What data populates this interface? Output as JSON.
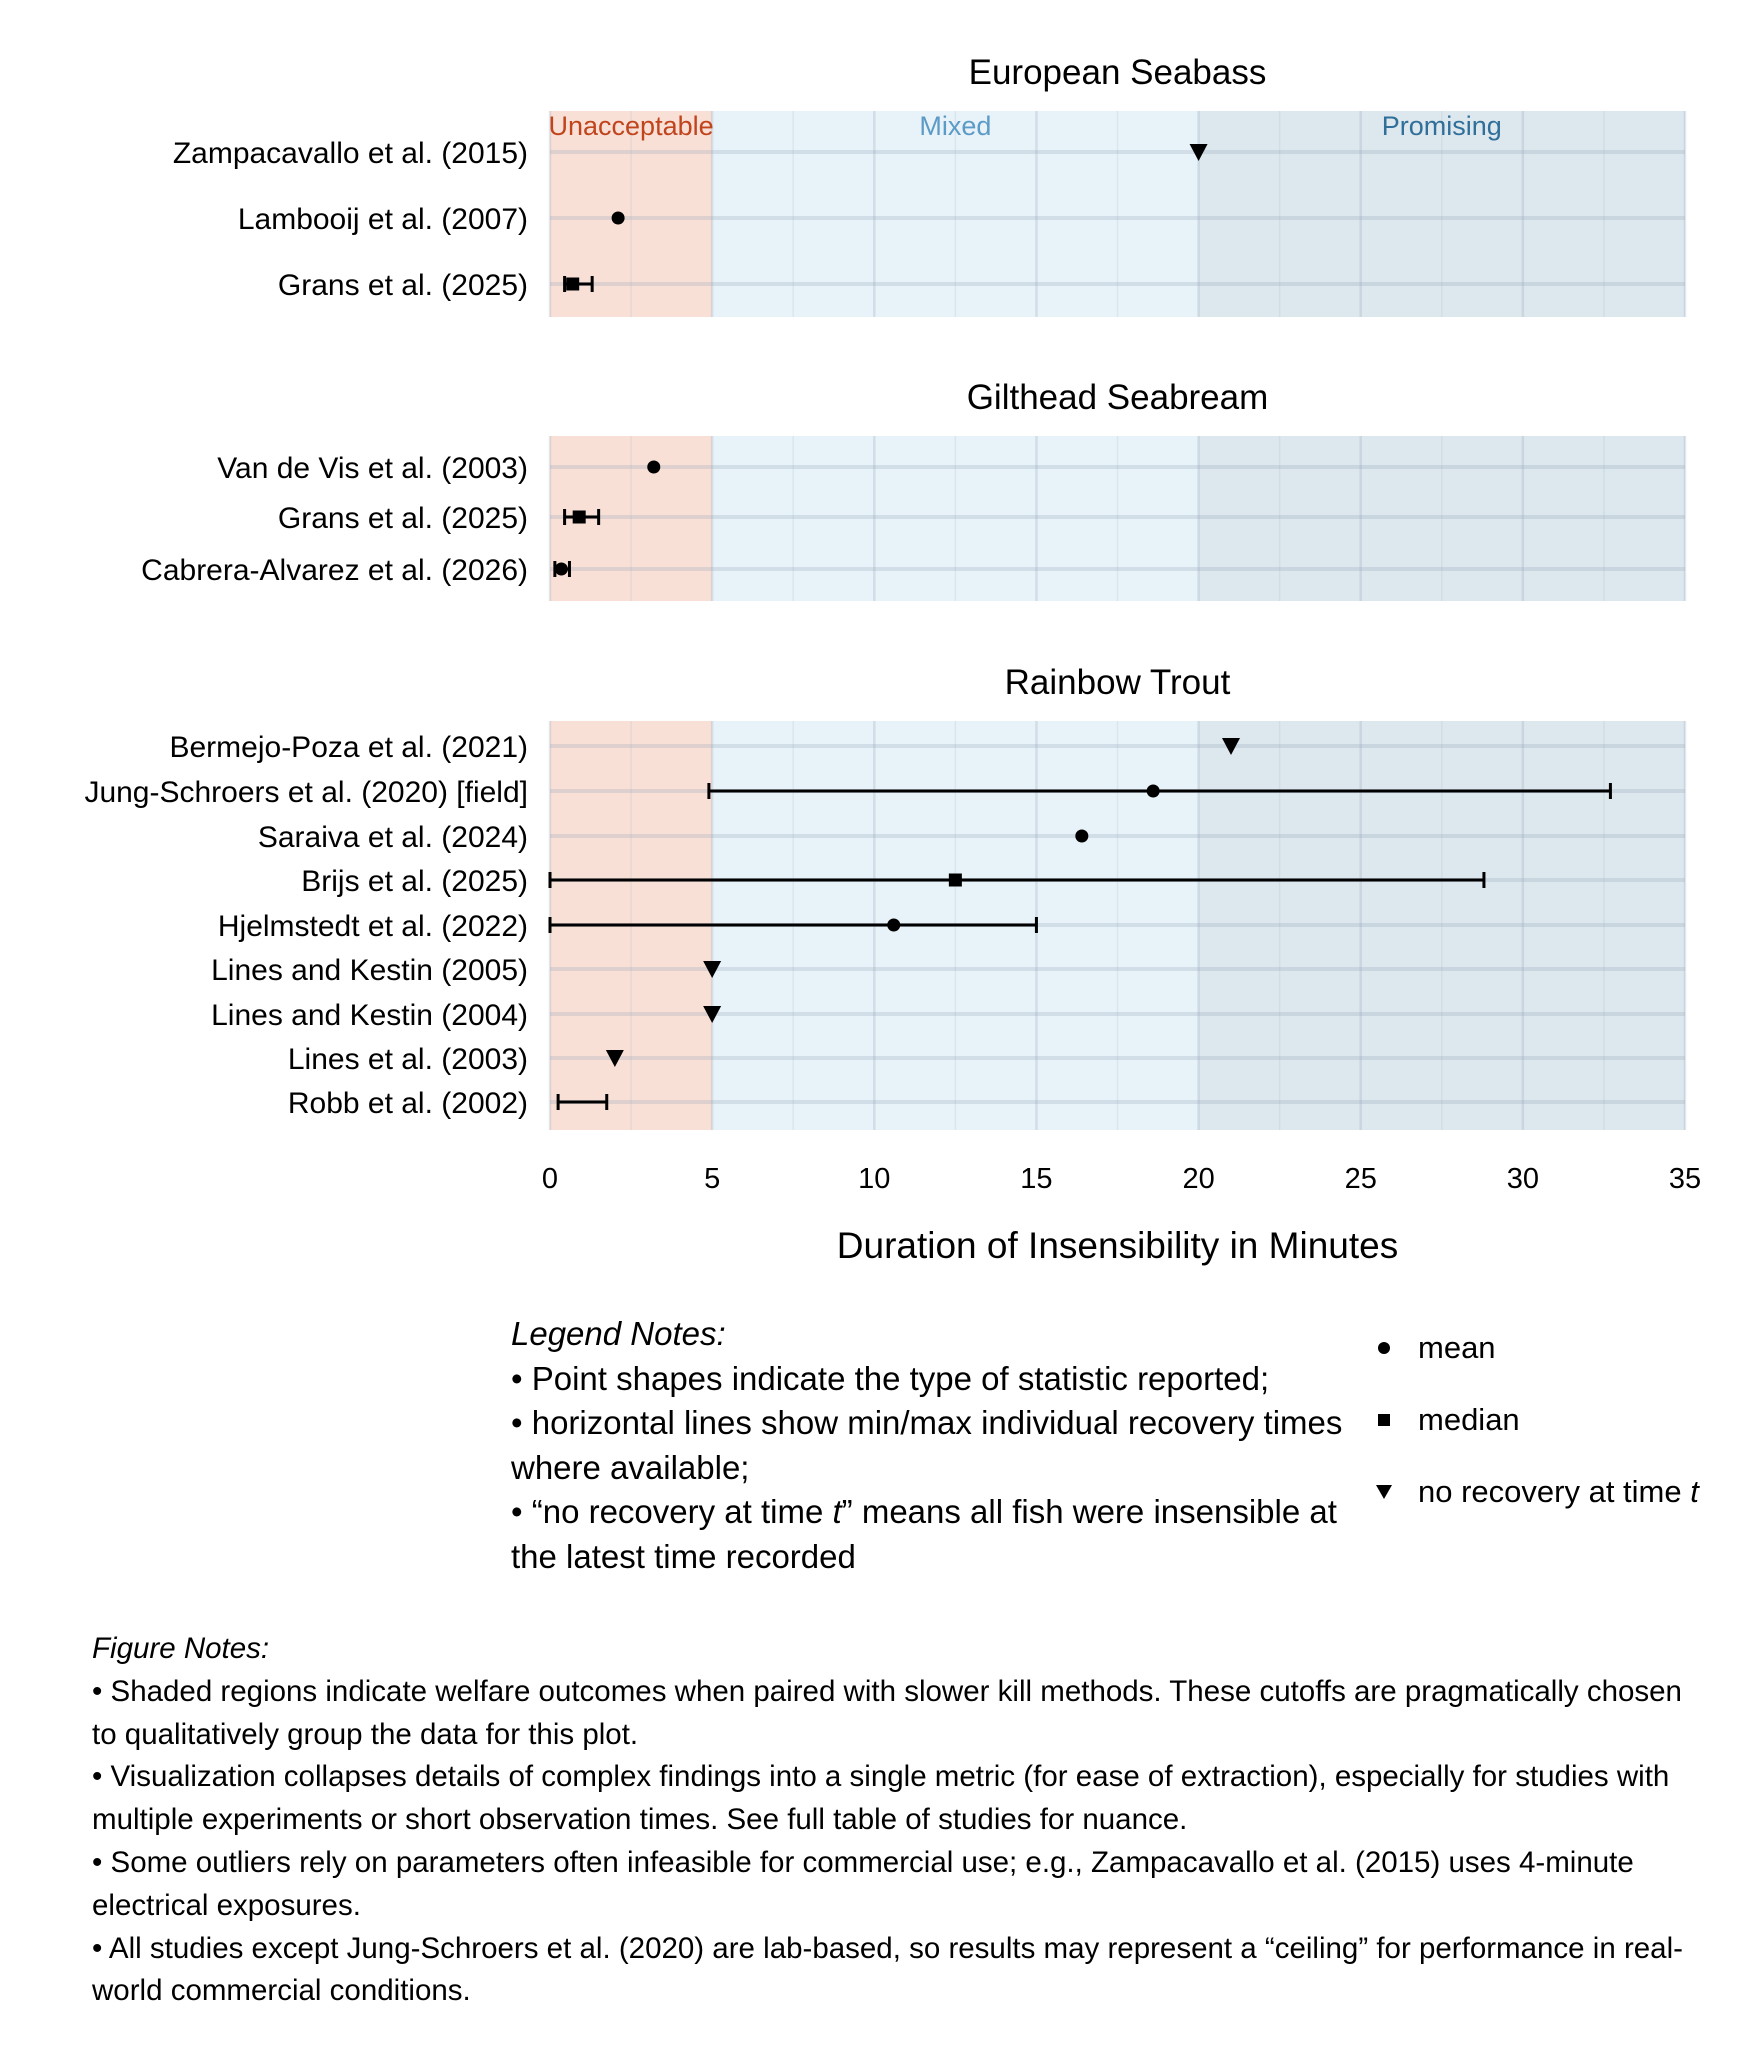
{
  "chart_data": {
    "type": "scatter",
    "xlabel": "Duration of Insensibility in Minutes",
    "xlim": [
      0,
      35
    ],
    "xticks": [
      0,
      5,
      10,
      15,
      20,
      25,
      30,
      35
    ],
    "grid": true,
    "regions": [
      {
        "label": "Unacceptable",
        "from": 0,
        "to": 5,
        "fill": "#f9e0d7",
        "text_color": "#c0441c"
      },
      {
        "label": "Mixed",
        "from": 5,
        "to": 20,
        "fill": "#e8f2f9",
        "text_color": "#5b9bc6"
      },
      {
        "label": "Promising",
        "from": 20,
        "to": 35,
        "fill": "#dde7ee",
        "text_color": "#2f6f99"
      }
    ],
    "panels": [
      {
        "title": "European Seabass",
        "studies": [
          {
            "label": "Zampacavallo et al. (2015)",
            "value": 20,
            "stat": "no recovery at time t",
            "min": null,
            "max": null
          },
          {
            "label": "Lambooij et al. (2007)",
            "value": 2.1,
            "stat": "mean",
            "min": null,
            "max": null
          },
          {
            "label": "Grans et al. (2025)",
            "value": 0.7,
            "stat": "median",
            "min": 0.45,
            "max": 1.3
          }
        ]
      },
      {
        "title": "Gilthead Seabream",
        "studies": [
          {
            "label": "Van de Vis et al. (2003)",
            "value": 3.2,
            "stat": "mean",
            "min": null,
            "max": null
          },
          {
            "label": "Grans et al. (2025)",
            "value": 0.9,
            "stat": "median",
            "min": 0.45,
            "max": 1.5
          },
          {
            "label": "Cabrera-Alvarez et al. (2026)",
            "value": 0.35,
            "stat": "mean",
            "min": 0.15,
            "max": 0.6
          }
        ]
      },
      {
        "title": "Rainbow Trout",
        "studies": [
          {
            "label": "Bermejo-Poza et al. (2021)",
            "value": 21,
            "stat": "no recovery at time t",
            "min": null,
            "max": null
          },
          {
            "label": "Jung-Schroers et al. (2020) [field]",
            "value": 18.6,
            "stat": "mean",
            "min": 4.9,
            "max": 32.7
          },
          {
            "label": "Saraiva et al. (2024)",
            "value": 16.4,
            "stat": "mean",
            "min": null,
            "max": null
          },
          {
            "label": "Brijs et al. (2025)",
            "value": 12.5,
            "stat": "median",
            "min": 0,
            "max": 28.8
          },
          {
            "label": "Hjelmstedt et al. (2022)",
            "value": 10.6,
            "stat": "mean",
            "min": 0,
            "max": 15
          },
          {
            "label": "Lines and Kestin (2005)",
            "value": 5,
            "stat": "no recovery at time t",
            "min": null,
            "max": null
          },
          {
            "label": "Lines and Kestin (2004)",
            "value": 5,
            "stat": "no recovery at time t",
            "min": null,
            "max": null
          },
          {
            "label": "Lines et al. (2003)",
            "value": 2,
            "stat": "no recovery at time t",
            "min": null,
            "max": null
          },
          {
            "label": "Robb et al. (2002)",
            "value": null,
            "stat": null,
            "min": 0.25,
            "max": 1.75
          }
        ]
      }
    ]
  },
  "legend_notes": {
    "heading": "Legend Notes:",
    "lines": [
      "• Point shapes indicate the type of statistic reported;",
      "• horizontal lines show min/max individual recovery times where available;",
      "• “no recovery at time t” means all fish were insensible at the latest time recorded"
    ]
  },
  "legend": {
    "items": [
      {
        "label": "mean",
        "shape": "circle"
      },
      {
        "label": "median",
        "shape": "square"
      },
      {
        "label": "no recovery at time t",
        "shape": "triangle-down"
      }
    ]
  },
  "figure_notes": {
    "heading": "Figure Notes:",
    "lines": [
      "• Shaded regions indicate welfare outcomes when paired with slower kill methods. These cutoffs are pragmatically chosen to qualitatively group the data for this plot.",
      "• Visualization collapses details of complex findings into a single metric (for ease of extraction), especially for studies with multiple experiments or short observation times. See full table of studies for nuance.",
      "• Some outliers rely on parameters often infeasible for commercial use; e.g., Zampacavallo et al. (2015) uses 4-minute electrical exposures.",
      "• All studies except Jung-Schroers et al. (2020) are lab-based, so results may represent a “ceiling” for performance in real-world commercial conditions."
    ]
  }
}
